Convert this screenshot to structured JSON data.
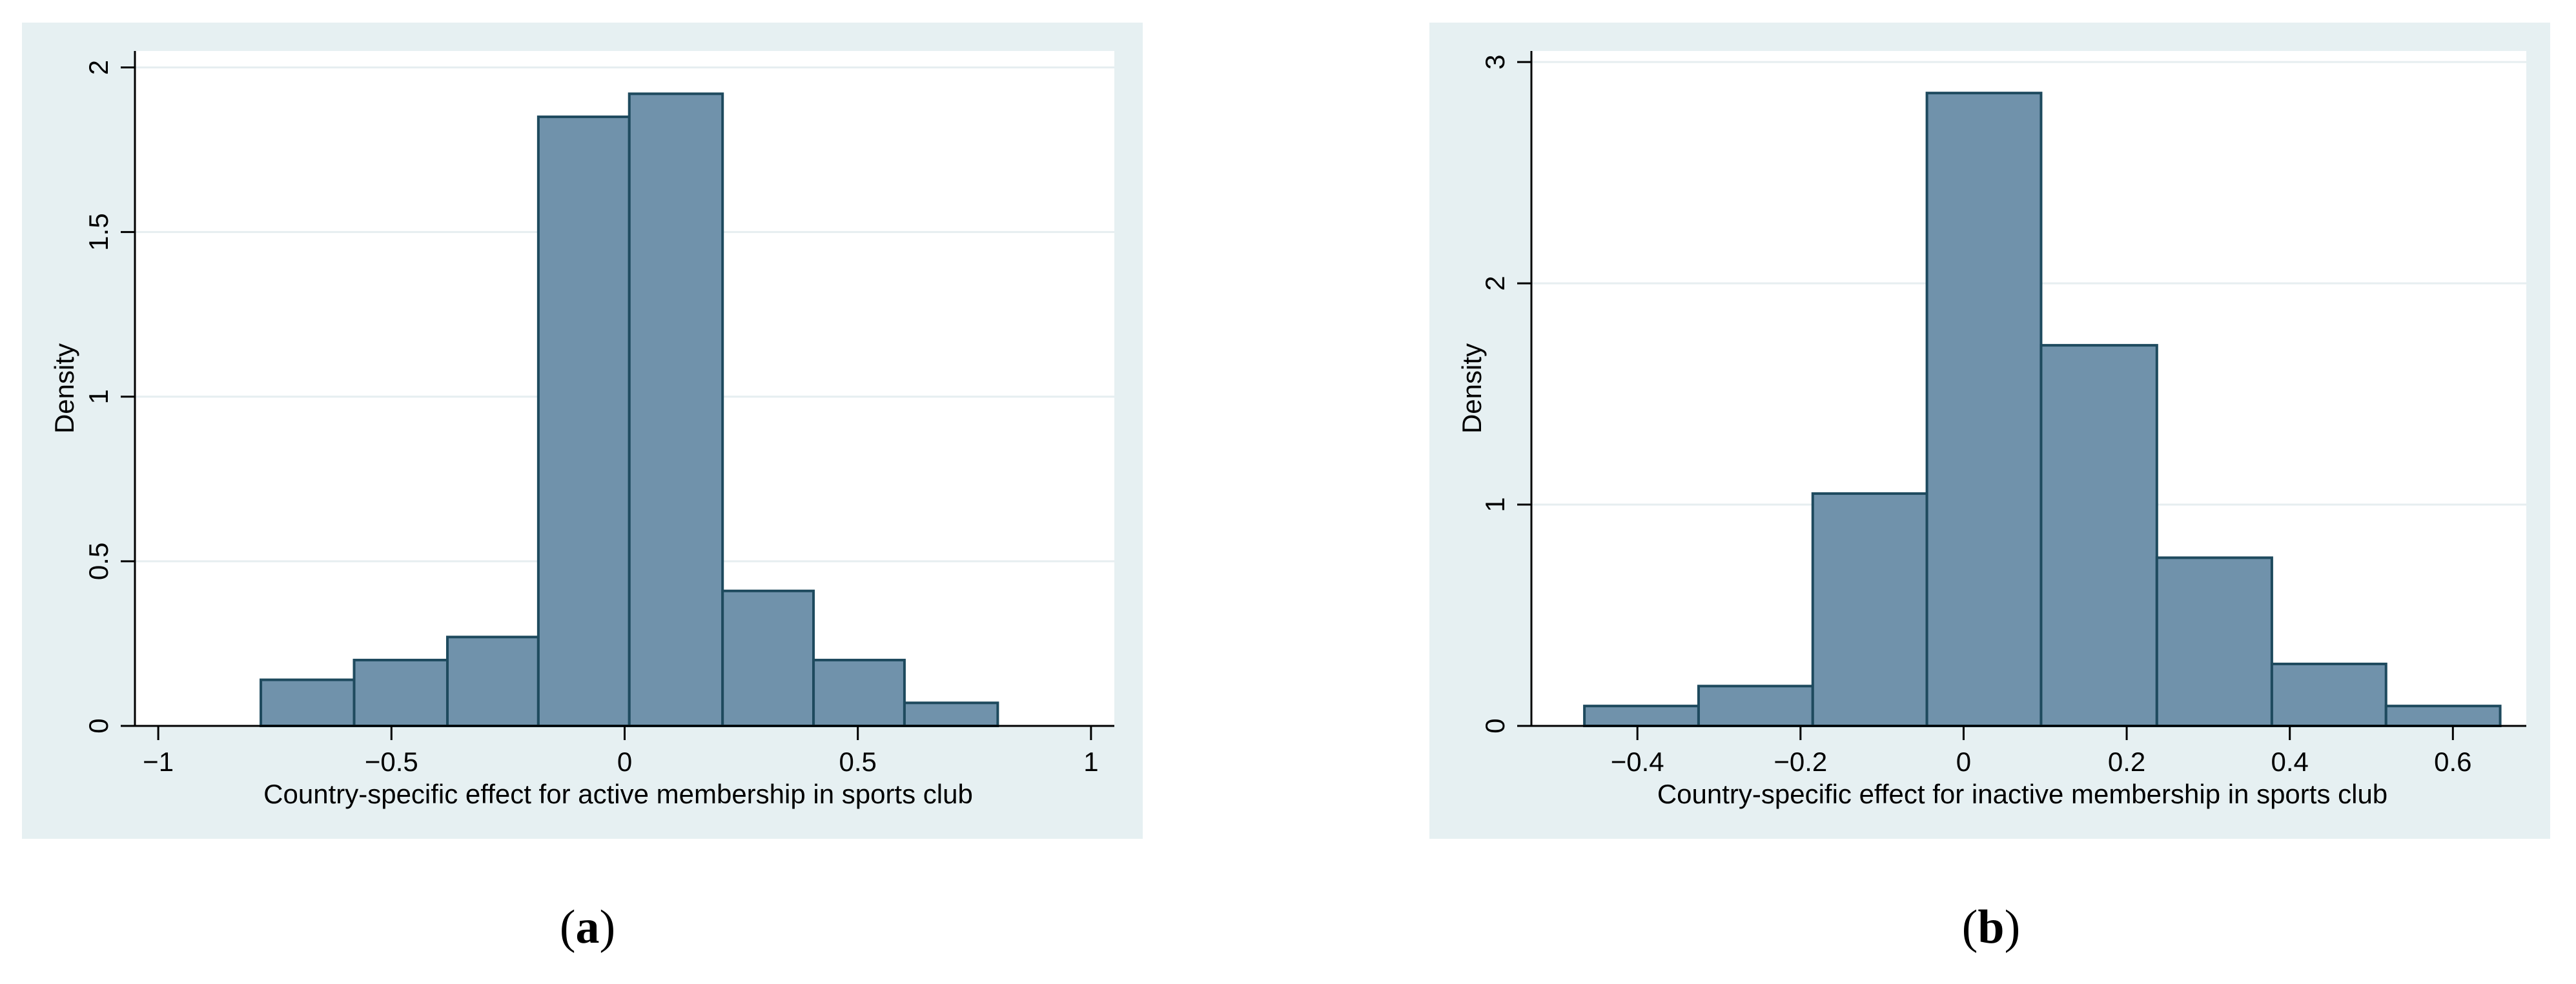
{
  "charts": [
    {
      "type": "bar",
      "chart_data": {
        "type": "bar",
        "xlabel": "Country-specific effect for active membership in sports club",
        "ylabel": "Density",
        "xlim": [
          -1.05,
          1.05
        ],
        "ylim": [
          0,
          2.05
        ],
        "xticks": [
          -1,
          -0.5,
          0,
          0.5,
          1
        ],
        "xtick_labels": [
          "−1",
          "−0.5",
          "0",
          "0.5",
          "1"
        ],
        "yticks": [
          0,
          0.5,
          1,
          1.5,
          2
        ],
        "ytick_labels": [
          "0",
          "0.5",
          "1",
          "1.5",
          "2"
        ],
        "grid": true,
        "bins": [
          {
            "x0": -0.78,
            "x1": -0.58,
            "density": 0.14
          },
          {
            "x0": -0.58,
            "x1": -0.38,
            "density": 0.2
          },
          {
            "x0": -0.38,
            "x1": -0.185,
            "density": 0.27
          },
          {
            "x0": -0.185,
            "x1": 0.01,
            "density": 1.85
          },
          {
            "x0": 0.01,
            "x1": 0.21,
            "density": 1.92
          },
          {
            "x0": 0.21,
            "x1": 0.405,
            "density": 0.41
          },
          {
            "x0": 0.405,
            "x1": 0.6,
            "density": 0.2
          },
          {
            "x0": 0.6,
            "x1": 0.8,
            "density": 0.07
          }
        ]
      },
      "caption": "a"
    },
    {
      "type": "bar",
      "chart_data": {
        "type": "bar",
        "xlabel": "Country-specific effect for inactive membership in sports club",
        "ylabel": "Density",
        "xlim": [
          -0.53,
          0.69
        ],
        "ylim": [
          0,
          3.05
        ],
        "xticks": [
          -0.4,
          -0.2,
          0,
          0.2,
          0.4,
          0.6
        ],
        "xtick_labels": [
          "−0.4",
          "−0.2",
          "0",
          "0.2",
          "0.4",
          "0.6"
        ],
        "yticks": [
          0,
          1,
          2,
          3
        ],
        "ytick_labels": [
          "0",
          "1",
          "2",
          "3"
        ],
        "grid": true,
        "bins": [
          {
            "x0": -0.465,
            "x1": -0.325,
            "density": 0.09
          },
          {
            "x0": -0.325,
            "x1": -0.185,
            "density": 0.18
          },
          {
            "x0": -0.185,
            "x1": -0.045,
            "density": 1.05
          },
          {
            "x0": -0.045,
            "x1": 0.095,
            "density": 2.86
          },
          {
            "x0": 0.095,
            "x1": 0.237,
            "density": 1.72
          },
          {
            "x0": 0.237,
            "x1": 0.378,
            "density": 0.76
          },
          {
            "x0": 0.378,
            "x1": 0.518,
            "density": 0.28
          },
          {
            "x0": 0.518,
            "x1": 0.658,
            "density": 0.09
          }
        ]
      },
      "caption": "b"
    }
  ],
  "colors": {
    "panel_bg": "#e6f0f2",
    "plot_bg": "#ffffff",
    "bar_fill": "#7092ab",
    "bar_stroke": "#1e4a5e",
    "grid": "#e6eef0",
    "axis": "#000000"
  }
}
